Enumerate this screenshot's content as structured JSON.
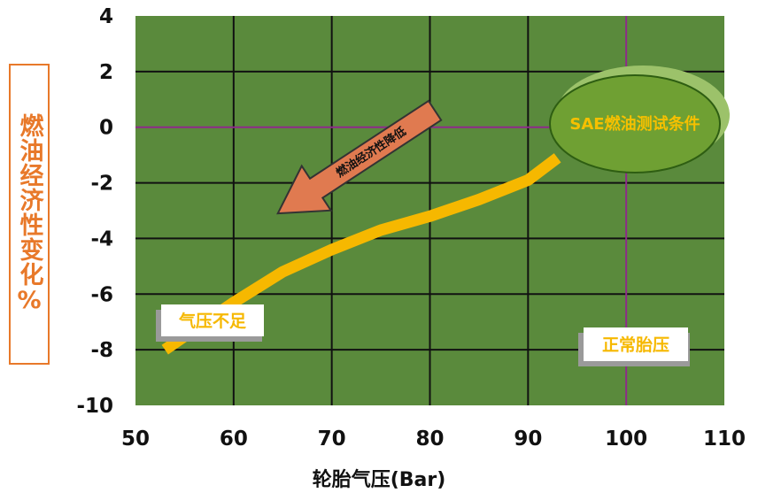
{
  "chart_data": {
    "type": "line",
    "xlabel": "轮胎气压(Bar)",
    "ylabel": "燃油经济性变化%",
    "xlim": [
      50,
      110
    ],
    "ylim": [
      -10,
      4
    ],
    "xticks": [
      50,
      60,
      70,
      80,
      90,
      100,
      110
    ],
    "yticks": [
      4,
      2,
      0,
      -2,
      -4,
      -6,
      -8,
      -10
    ],
    "grid": true,
    "series": [
      {
        "x": [
          53,
          60,
          65,
          70,
          75,
          80,
          85,
          90,
          93
        ],
        "y": [
          -8.0,
          -6.3,
          -5.2,
          -4.4,
          -3.7,
          -3.2,
          -2.6,
          -1.9,
          -1.1
        ],
        "color": "#f6b800"
      }
    ],
    "reference_lines": [
      {
        "axis": "y",
        "value": 0,
        "color": "#8e2a8a"
      },
      {
        "axis": "x",
        "value": 100,
        "color": "#8e2a8a"
      }
    ],
    "annotations": {
      "arrow_label": "燃油经济性降低",
      "ellipse_label": "SAE燃油测试条件",
      "low_pressure_label": "气压不足",
      "normal_pressure_label": "正常胎压"
    },
    "colors": {
      "plot_bg": "#5a8a3c",
      "grid": "#111111",
      "arrow": "#e07a50",
      "ellipse": "#6fa033",
      "ellipse_shadow": "#9cc26a",
      "ellipse_text": "#f6c000",
      "label_text": "#f6b800",
      "axis_label": "#e8792a"
    }
  }
}
